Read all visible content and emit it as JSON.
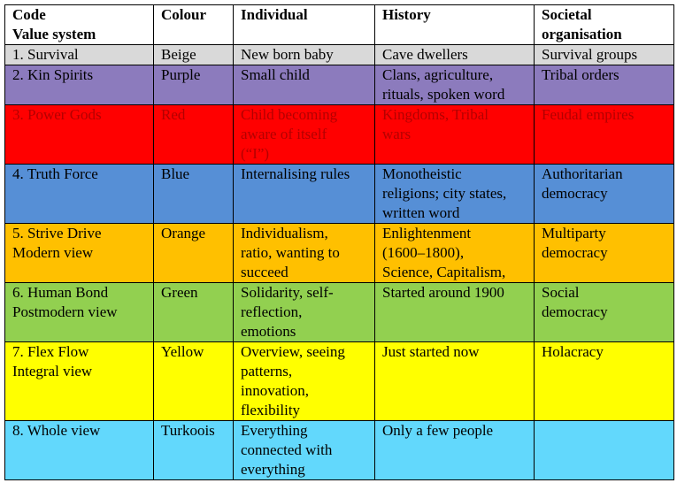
{
  "table": {
    "header": [
      [
        "Code",
        "Value system"
      ],
      [
        "Colour"
      ],
      [
        "Individual"
      ],
      [
        "History"
      ],
      [
        "Societal",
        "organisation"
      ]
    ],
    "rows": [
      [
        [
          "1. Survival"
        ],
        [
          "Beige"
        ],
        [
          "New born baby"
        ],
        [
          "Cave dwellers"
        ],
        [
          "Survival groups"
        ]
      ],
      [
        [
          "2. Kin Spirits"
        ],
        [
          "Purple"
        ],
        [
          "Small child"
        ],
        [
          "Clans, agriculture,",
          "rituals, spoken word"
        ],
        [
          "Tribal orders"
        ]
      ],
      [
        [
          "3. Power Gods"
        ],
        [
          "Red"
        ],
        [
          "Child becoming",
          "aware of itself",
          "(“I”)"
        ],
        [
          "Kingdoms, Tribal",
          "wars"
        ],
        [
          "Feudal empires"
        ]
      ],
      [
        [
          "4. Truth Force"
        ],
        [
          "Blue"
        ],
        [
          "Internalising rules"
        ],
        [
          "Monotheistic",
          "religions; city states,",
          "written word"
        ],
        [
          "Authoritarian",
          "democracy"
        ]
      ],
      [
        [
          "5. Strive Drive",
          "Modern view"
        ],
        [
          "Orange"
        ],
        [
          "Individualism,",
          "ratio, wanting to",
          "succeed"
        ],
        [
          "Enlightenment",
          "(1600–1800),",
          "Science, Capitalism,"
        ],
        [
          "Multiparty",
          "democracy"
        ]
      ],
      [
        [
          "6. Human Bond",
          "Postmodern view"
        ],
        [
          "Green"
        ],
        [
          "Solidarity, self-",
          "reflection,",
          "emotions"
        ],
        [
          "Started around 1900"
        ],
        [
          "Social",
          "democracy"
        ]
      ],
      [
        [
          "7. Flex Flow",
          "Integral view"
        ],
        [
          "Yellow"
        ],
        [
          "Overview, seeing",
          "patterns,",
          "innovation,",
          "flexibility"
        ],
        [
          "Just started now"
        ],
        [
          "Holacracy"
        ]
      ],
      [
        [
          "8. Whole view"
        ],
        [
          "Turkoois"
        ],
        [
          "Everything",
          "connected with",
          "everything"
        ],
        [
          "Only a few  people"
        ],
        []
      ]
    ]
  }
}
